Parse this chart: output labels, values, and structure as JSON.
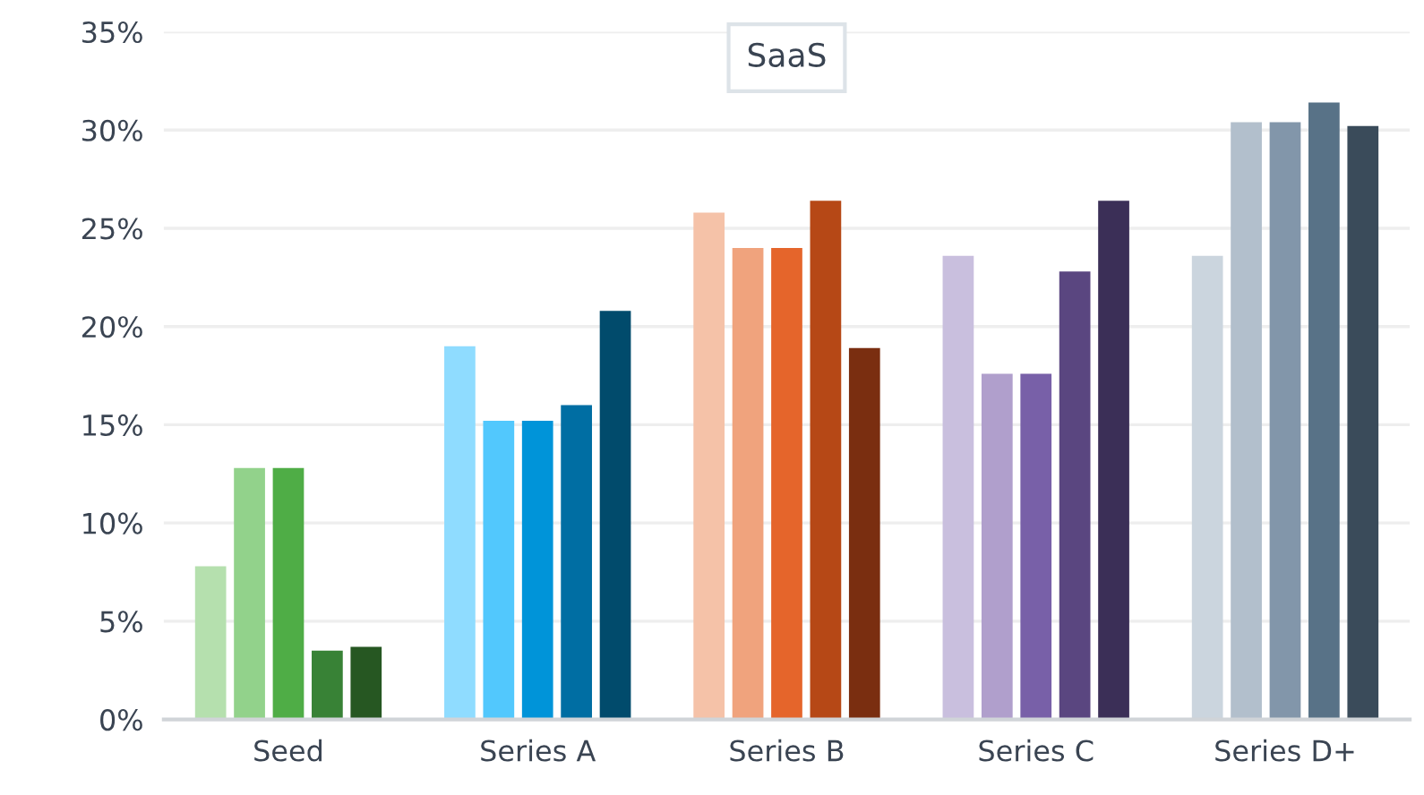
{
  "chart_data": {
    "type": "bar",
    "title": "SaaS",
    "categories": [
      "Seed",
      "Series A",
      "Series B",
      "Series C",
      "Series D+"
    ],
    "series": [
      {
        "values": [
          7.8,
          19.0,
          25.8,
          23.6,
          23.6
        ],
        "colors": [
          "#b5e0ae",
          "#8fdcff",
          "#f5c2a8",
          "#c9bfde",
          "#cbd5de"
        ]
      },
      {
        "values": [
          12.8,
          15.2,
          24.0,
          17.6,
          30.4
        ],
        "colors": [
          "#92d28b",
          "#52c8fd",
          "#f0a37d",
          "#b09fcc",
          "#b2bfcc"
        ]
      },
      {
        "values": [
          12.8,
          15.2,
          24.0,
          17.6,
          30.4
        ],
        "colors": [
          "#4fad46",
          "#0094d9",
          "#e5652b",
          "#7860a8",
          "#8296aa"
        ]
      },
      {
        "values": [
          3.5,
          16.0,
          26.4,
          22.8,
          31.4
        ],
        "colors": [
          "#388236",
          "#006ea3",
          "#b64816",
          "#5a4680",
          "#587287"
        ]
      },
      {
        "values": [
          3.7,
          20.8,
          18.9,
          26.4,
          30.2
        ],
        "colors": [
          "#265722",
          "#014b6c",
          "#7a2e10",
          "#3b2f57",
          "#3a4b5a"
        ]
      }
    ],
    "ylim": [
      0,
      35
    ],
    "yticks": [
      {
        "value": 0,
        "label": "0%"
      },
      {
        "value": 5,
        "label": "5%"
      },
      {
        "value": 10,
        "label": "10%"
      },
      {
        "value": 15,
        "label": "15%"
      },
      {
        "value": 20,
        "label": "20%"
      },
      {
        "value": 25,
        "label": "25%"
      },
      {
        "value": 30,
        "label": "30%"
      },
      {
        "value": 35,
        "label": "35%"
      }
    ],
    "grid": "y"
  }
}
